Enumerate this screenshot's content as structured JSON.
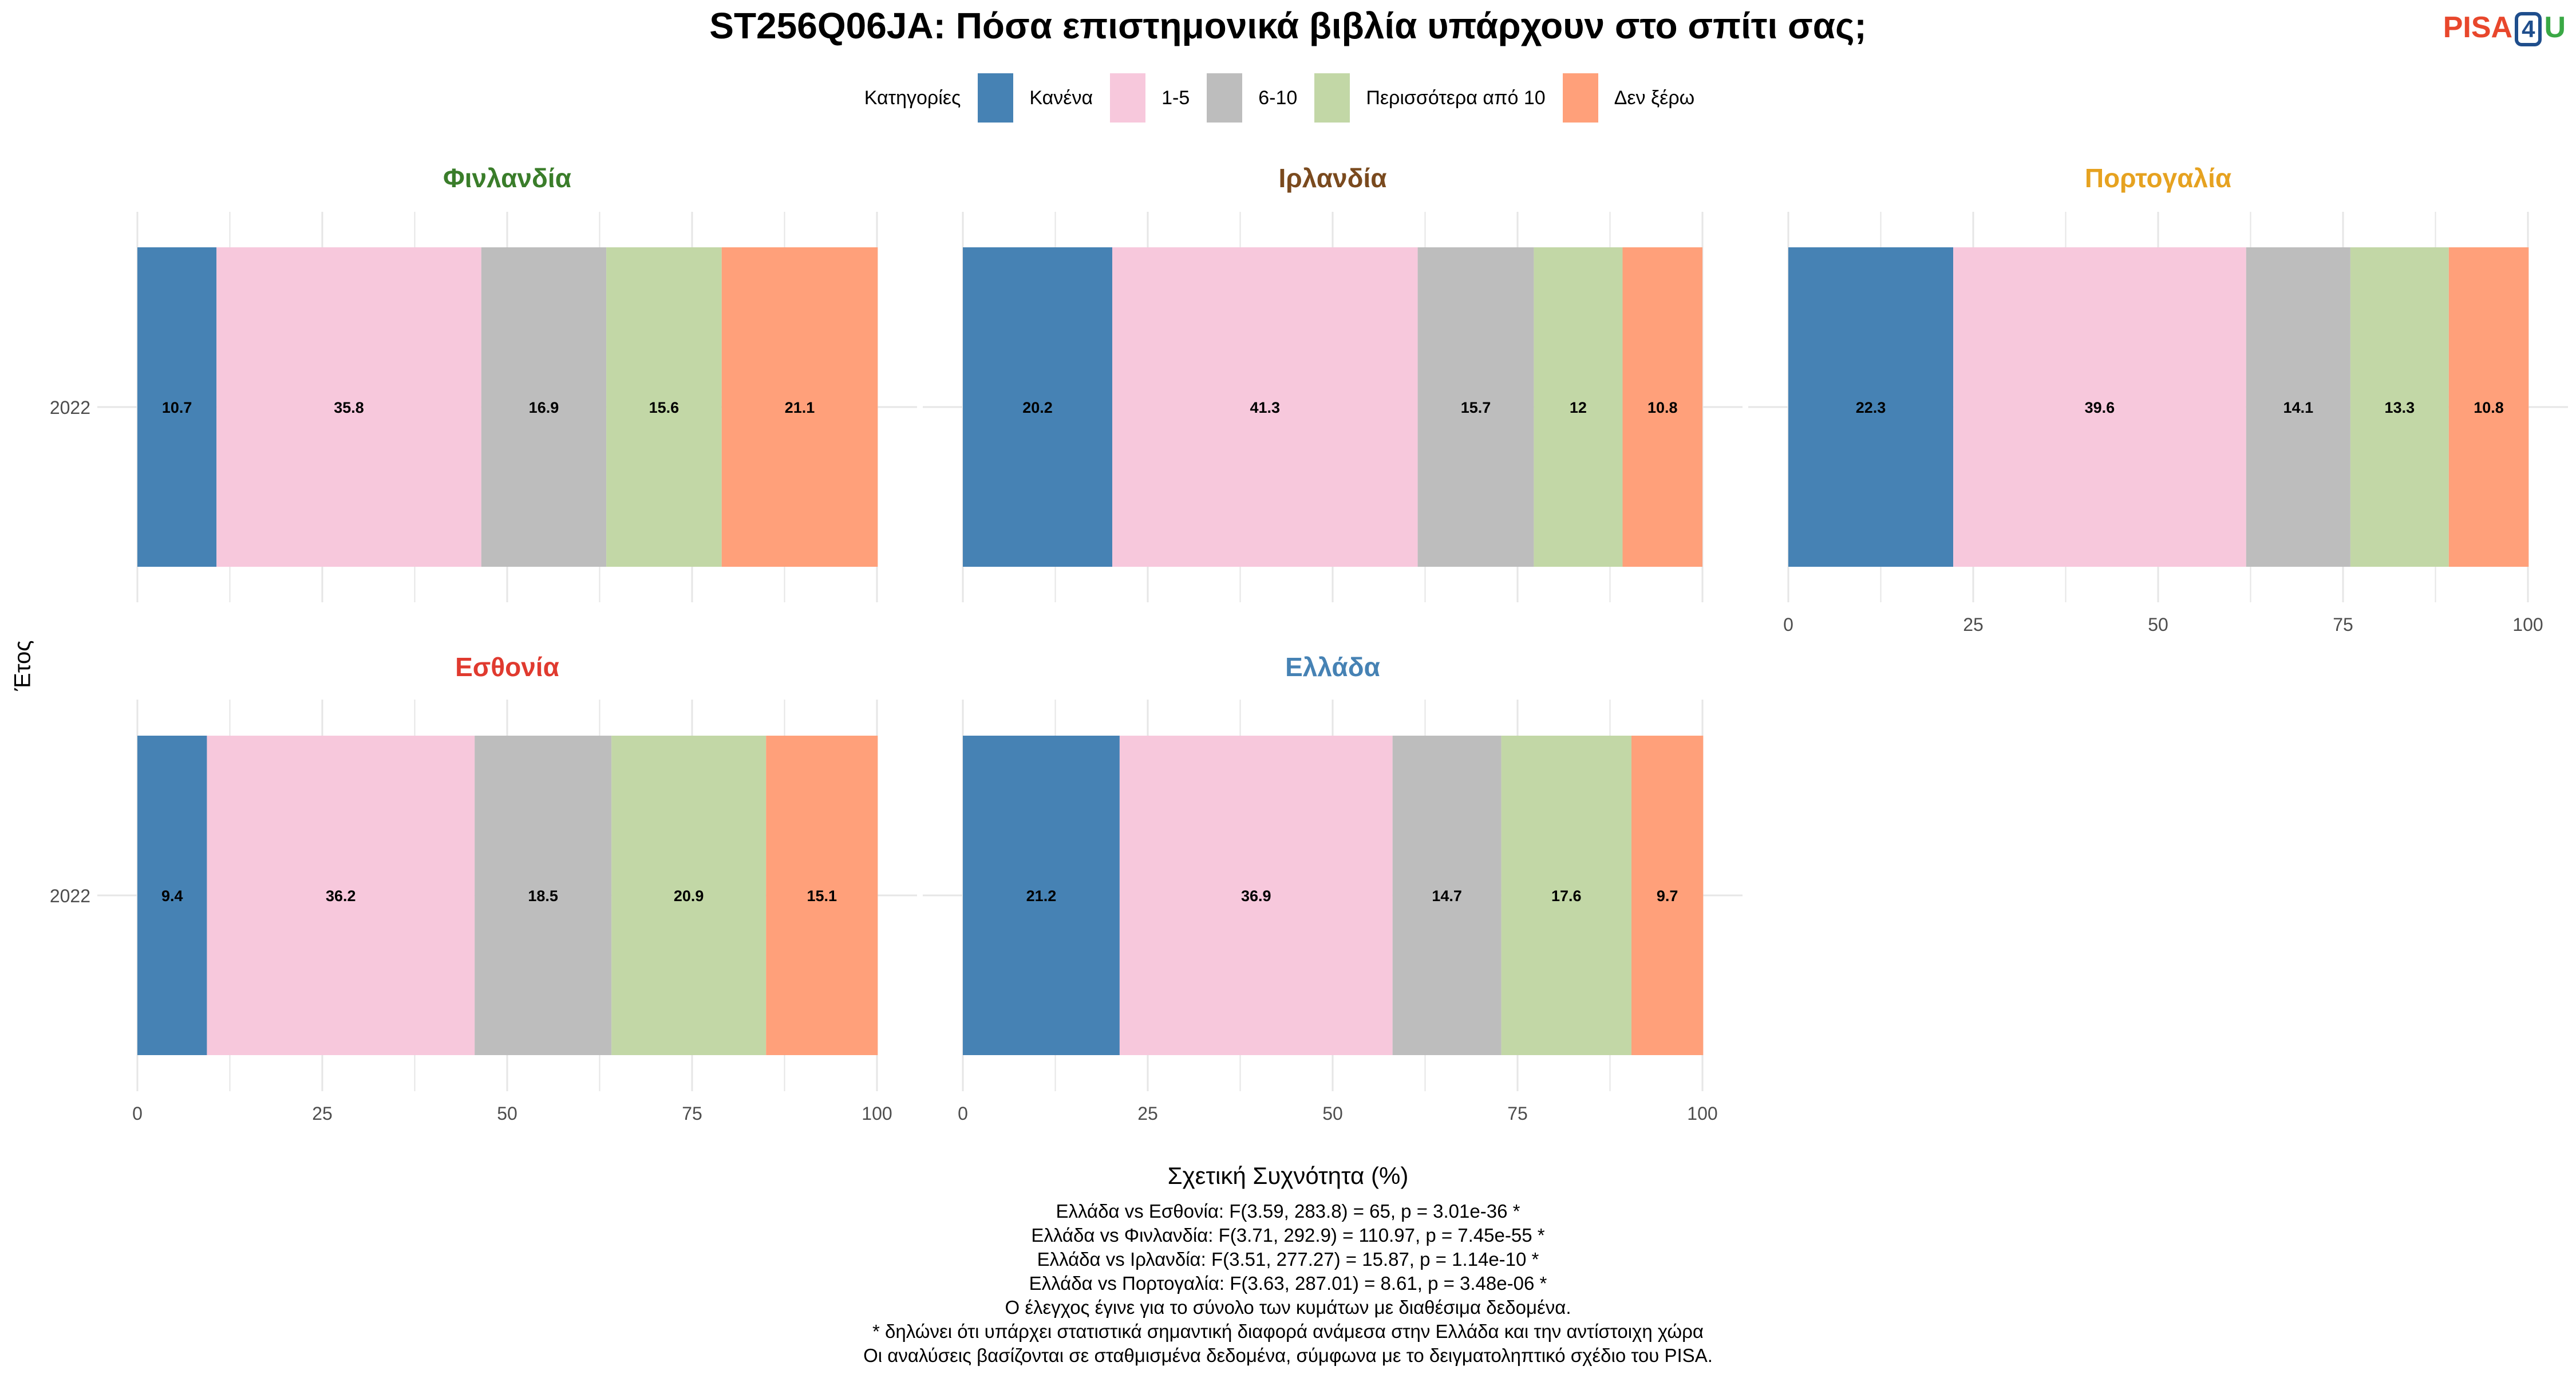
{
  "title": "ST256Q06JA: Πόσα επιστημονικά βιβλία υπάρχουν στο σπίτι σας;",
  "logo": {
    "part1": "PISA",
    "part2": "4",
    "part3": "U"
  },
  "legend_title": "Κατηγορίες",
  "x_axis_title": "Σχετική Συχνότητα (%)",
  "y_axis_title": "Έτος",
  "notes": [
    "Ελλάδα vs Εσθονία: F(3.59, 283.8) = 65, p = 3.01e-36 *",
    "Ελλάδα vs Φινλανδία: F(3.71, 292.9) = 110.97, p = 7.45e-55 *",
    "Ελλάδα vs Ιρλανδία: F(3.51, 277.27) = 15.87, p = 1.14e-10 *",
    "Ελλάδα vs Πορτογαλία: F(3.63, 287.01) = 8.61, p = 3.48e-06 *",
    "Ο έλεγχος έγινε για το σύνολο των κυμάτων με διαθέσιμα δεδομένα.",
    "* δηλώνει ότι υπάρχει στατιστικά σημαντική διαφορά ανάμεσα στην Ελλάδα και την αντίστοιχη χώρα",
    "Οι αναλύσεις βασίζονται σε σταθμισμένα δεδομένα, σύμφωνα με το δειγματοληπτικό σχέδιο του PISA."
  ],
  "chart_data": {
    "type": "bar",
    "orientation": "horizontal",
    "stacked": true,
    "xlim": [
      0,
      100
    ],
    "x_ticks": [
      0,
      25,
      50,
      75,
      100
    ],
    "grid": true,
    "legend_position": "top",
    "categories": [
      {
        "name": "Κανένα",
        "color": "#4682b4"
      },
      {
        "name": "1-5",
        "color": "#f7c8dc"
      },
      {
        "name": "6-10",
        "color": "#bdbdbd"
      },
      {
        "name": "Περισσότερα από 10",
        "color": "#c2d7a6"
      },
      {
        "name": "Δεν ξέρω",
        "color": "#ffa07a"
      }
    ],
    "panels": [
      {
        "name": "Φινλανδία",
        "color": "#3a7d2a",
        "year": "2022",
        "values": [
          10.7,
          35.8,
          16.9,
          15.6,
          21.1
        ],
        "show_x_axis": false
      },
      {
        "name": "Ιρλανδία",
        "color": "#7a4a1e",
        "year": "2022",
        "values": [
          20.2,
          41.3,
          15.7,
          12,
          10.8
        ],
        "show_x_axis": false
      },
      {
        "name": "Πορτογαλία",
        "color": "#e6a220",
        "year": "2022",
        "values": [
          22.3,
          39.6,
          14.1,
          13.3,
          10.8
        ],
        "show_x_axis": true
      },
      {
        "name": "Εσθονία",
        "color": "#e03a2f",
        "year": "2022",
        "values": [
          9.4,
          36.2,
          18.5,
          20.9,
          15.1
        ],
        "show_x_axis": true
      },
      {
        "name": "Ελλάδα",
        "color": "#4682b4",
        "year": "2022",
        "values": [
          21.2,
          36.9,
          14.7,
          17.6,
          9.7
        ],
        "show_x_axis": true
      }
    ]
  }
}
